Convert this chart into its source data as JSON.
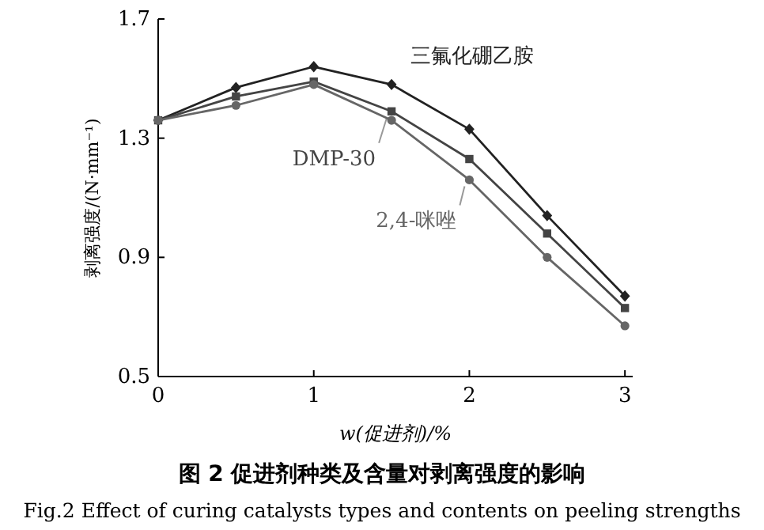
{
  "chart_data": {
    "type": "line",
    "title": "图 2  促进剂种类及含量对剥离强度的影响",
    "subtitle": "Fig.2   Effect of curing catalysts types and contents on peeling strengths",
    "xlabel": "w(促进剂)/%",
    "ylabel": "剥离强度/(N·mm⁻¹)",
    "x": [
      0,
      0.5,
      1,
      1.5,
      2,
      2.5,
      3
    ],
    "series": [
      {
        "name": "三氟化硼乙胺",
        "color": "#222222",
        "marker": "diamond",
        "values": [
          1.36,
          1.47,
          1.54,
          1.48,
          1.33,
          1.04,
          0.77
        ]
      },
      {
        "name": "DMP-30",
        "color": "#444444",
        "marker": "square",
        "values": [
          1.36,
          1.44,
          1.49,
          1.39,
          1.23,
          0.98,
          0.73
        ]
      },
      {
        "name": "2,4-咪唑",
        "color": "#666666",
        "marker": "circle",
        "values": [
          1.36,
          1.41,
          1.48,
          1.36,
          1.16,
          0.9,
          0.67
        ]
      }
    ],
    "xlim": [
      0,
      3.05
    ],
    "ylim": [
      0.5,
      1.7
    ],
    "xticks": [
      0,
      1,
      2,
      3
    ],
    "yticks": [
      0.5,
      0.9,
      1.3,
      1.7
    ],
    "grid": false,
    "line_style": "solid"
  }
}
